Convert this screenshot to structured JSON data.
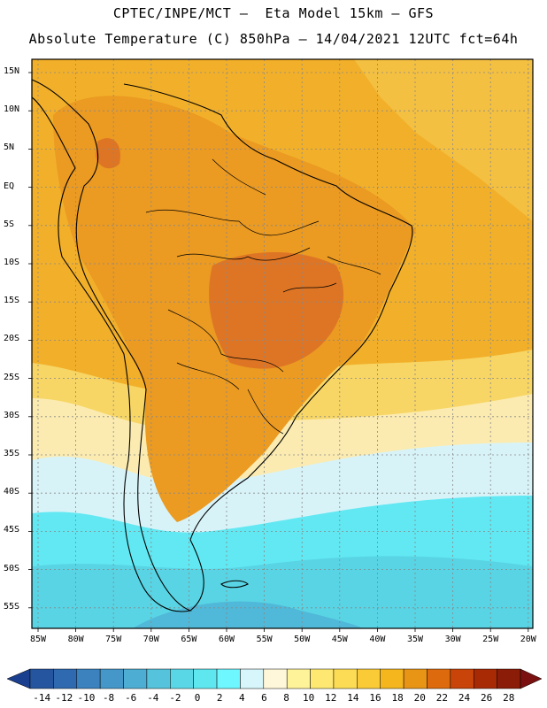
{
  "header": {
    "line1": "CPTEC/INPE/MCT –  Eta Model 15km – GFS",
    "line2": "Absolute Temperature (C) 850hPa – 14/04/2021 12UTC fct=64h"
  },
  "map": {
    "lat_labels": [
      "15N",
      "10N",
      "5N",
      "EQ",
      "5S",
      "10S",
      "15S",
      "20S",
      "25S",
      "30S",
      "35S",
      "40S",
      "45S",
      "50S",
      "55S"
    ],
    "lon_labels": [
      "85W",
      "80W",
      "75W",
      "70W",
      "65W",
      "60W",
      "55W",
      "50W",
      "45W",
      "40W",
      "35W",
      "30W",
      "25W",
      "20W"
    ]
  },
  "colorbar": {
    "labels": [
      "-14",
      "-12",
      "-10",
      "-8",
      "-6",
      "-4",
      "-2",
      "0",
      "2",
      "4",
      "6",
      "8",
      "10",
      "12",
      "14",
      "16",
      "18",
      "20",
      "22",
      "24",
      "26",
      "28"
    ],
    "colors": [
      "#1b3f8f",
      "#25559f",
      "#2f6ab0",
      "#3b82bf",
      "#4597c9",
      "#4eadd3",
      "#55c3dc",
      "#5ad7e6",
      "#5fe7f0",
      "#6ff7ff",
      "#d6f6fb",
      "#fff7d9",
      "#fff39a",
      "#fee871",
      "#fddc55",
      "#fbcb37",
      "#f5b51d",
      "#e89415",
      "#dd6a0c",
      "#c94408",
      "#a82a05",
      "#8a1c08",
      "#7a1010"
    ]
  },
  "fields": {
    "sea": "#f2b02a",
    "warm_land": "#eb9a22",
    "hot_land": "#de7524",
    "coolA": "#f7d665",
    "coolB": "#fbebb0",
    "coolC": "#d8f3f8",
    "coolD": "#62e8f2",
    "coolE": "#58d4e4",
    "coolF": "#50b8d8"
  }
}
